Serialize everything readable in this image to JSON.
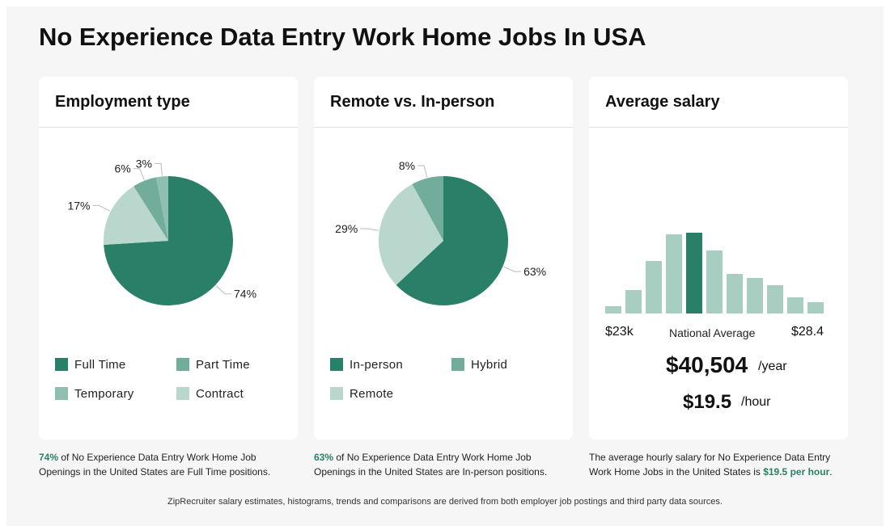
{
  "page": {
    "title": "No Experience Data Entry Work Home Jobs In USA",
    "footer": "ZipRecruiter salary estimates, histograms, trends and comparisons are derived from both employer job postings and third party data sources."
  },
  "colors": {
    "dark_green": "#2a7f68",
    "mid_green": "#72ad9b",
    "sage": "#8ebfb0",
    "light_green": "#b9d7cd",
    "bar_light": "#a8cdc1",
    "highlight_text": "#2a8066"
  },
  "chart_data": [
    {
      "type": "pie",
      "title": "Employment type",
      "slices": [
        {
          "label": "Full Time",
          "value": 74,
          "display": "74%",
          "color": "#2a7f68"
        },
        {
          "label": "Contract",
          "value": 17,
          "display": "17%",
          "color": "#b9d7cd"
        },
        {
          "label": "Part Time",
          "value": 6,
          "display": "6%",
          "color": "#72ad9b"
        },
        {
          "label": "Temporary",
          "value": 3,
          "display": "3%",
          "color": "#8ebfb0"
        }
      ],
      "legend": [
        {
          "label": "Full Time",
          "color": "#2a7f68"
        },
        {
          "label": "Part Time",
          "color": "#72ad9b"
        },
        {
          "label": "Temporary",
          "color": "#8ebfb0"
        },
        {
          "label": "Contract",
          "color": "#b9d7cd"
        }
      ]
    },
    {
      "type": "pie",
      "title": "Remote vs. In-person",
      "slices": [
        {
          "label": "In-person",
          "value": 63,
          "display": "63%",
          "color": "#2a7f68"
        },
        {
          "label": "Remote",
          "value": 29,
          "display": "29%",
          "color": "#b9d7cd"
        },
        {
          "label": "Hybrid",
          "value": 8,
          "display": "8%",
          "color": "#72ad9b"
        }
      ],
      "legend": [
        {
          "label": "In-person",
          "color": "#2a7f68"
        },
        {
          "label": "Hybrid",
          "color": "#72ad9b"
        },
        {
          "label": "Remote",
          "color": "#b9d7cd"
        }
      ]
    },
    {
      "type": "bar",
      "title": "Average salary",
      "values": [
        9,
        29,
        65,
        98,
        100,
        78,
        49,
        44,
        35,
        20,
        14
      ],
      "highlight_index": 4,
      "ylim": [
        0,
        100
      ],
      "min_label": "$23k",
      "mid_label": "National Average",
      "max_label": "$28.4",
      "yearly": "$40,504",
      "yearly_unit": "/year",
      "hourly": "$19.5",
      "hourly_unit": "/hour"
    }
  ],
  "captions": {
    "employment": {
      "highlight": "74%",
      "text": " of No Experience Data Entry Work Home Job Openings in the United States are Full Time positions."
    },
    "remote": {
      "highlight": "63%",
      "text": " of No Experience Data Entry Work Home Job Openings in the United States are In-person positions."
    },
    "salary": {
      "text": "The average hourly salary for No Experience Data Entry Work Home Jobs in the United States is ",
      "highlight": "$19.5 per hour",
      "suffix": "."
    }
  }
}
